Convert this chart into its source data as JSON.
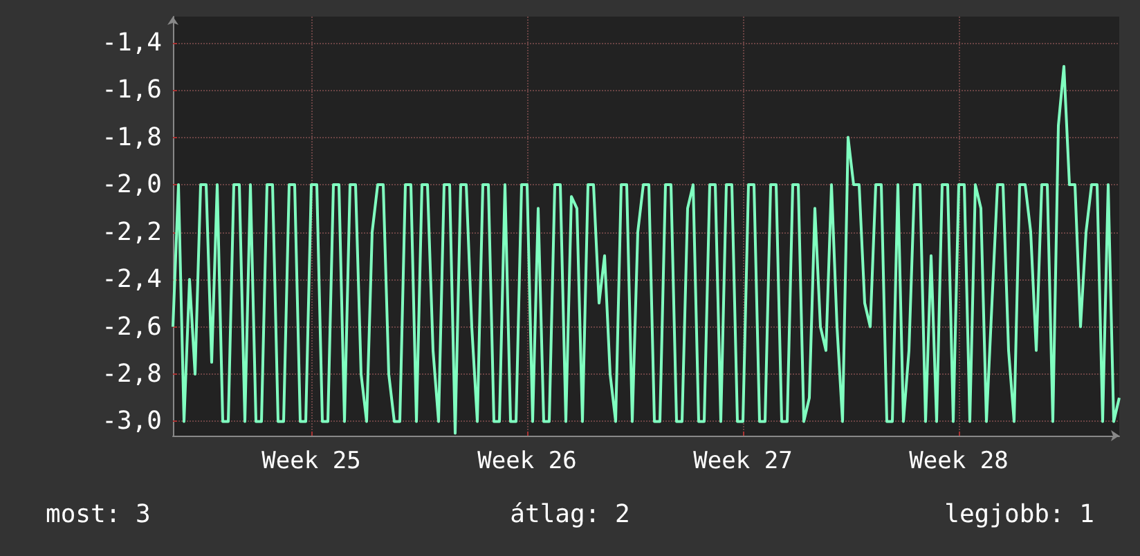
{
  "chart_data": {
    "type": "line",
    "marker": "none",
    "grid": "xy",
    "color": "#80ffc0",
    "ylim": [
      -3.06,
      -1.29
    ],
    "yticks": [
      {
        "value": -3.0,
        "label": "-3,0"
      },
      {
        "value": -2.8,
        "label": "-2,8"
      },
      {
        "value": -2.6,
        "label": "-2,6"
      },
      {
        "value": -2.4,
        "label": "-2,4"
      },
      {
        "value": -2.2,
        "label": "-2,2"
      },
      {
        "value": -2.0,
        "label": "-2,0"
      },
      {
        "value": -1.8,
        "label": "-1,8"
      },
      {
        "value": -1.6,
        "label": "-1,6"
      },
      {
        "value": -1.4,
        "label": "-1,4"
      }
    ],
    "annotations": [
      "most: 3",
      "átlag: 2",
      "legjobb: 1"
    ],
    "categories": [
      null,
      null,
      null,
      null,
      null,
      null,
      null,
      null,
      null,
      null,
      null,
      null,
      null,
      null,
      null,
      null,
      null,
      null,
      null,
      null,
      null,
      null,
      null,
      null,
      null,
      "Week 25",
      null,
      null,
      null,
      null,
      null,
      null,
      null,
      null,
      null,
      null,
      null,
      null,
      null,
      null,
      null,
      null,
      null,
      null,
      null,
      null,
      null,
      null,
      null,
      null,
      null,
      null,
      null,
      null,
      null,
      null,
      null,
      null,
      null,
      null,
      null,
      null,
      null,
      null,
      "Week 26",
      null,
      null,
      null,
      null,
      null,
      null,
      null,
      null,
      null,
      null,
      null,
      null,
      null,
      null,
      null,
      null,
      null,
      null,
      null,
      null,
      null,
      null,
      null,
      null,
      null,
      null,
      null,
      null,
      null,
      null,
      null,
      null,
      null,
      null,
      null,
      null,
      null,
      null,
      "Week 27",
      null,
      null,
      null,
      null,
      null,
      null,
      null,
      null,
      null,
      null,
      null,
      null,
      null,
      null,
      null,
      null,
      null,
      null,
      null,
      null,
      null,
      null,
      null,
      null,
      null,
      null,
      null,
      null,
      null,
      null,
      null,
      null,
      null,
      null,
      null,
      null,
      null,
      null,
      "Week 28",
      null,
      null,
      null,
      null,
      null,
      null,
      null,
      null,
      null,
      null,
      null,
      null,
      null,
      null,
      null,
      null,
      null,
      null,
      null,
      null,
      null,
      null,
      null,
      null,
      null,
      null,
      null,
      null,
      null
    ],
    "values": [
      -2.6,
      -2.0,
      -3.0,
      -2.4,
      -2.8,
      -2.0,
      -2.0,
      -2.75,
      -2.0,
      -3.0,
      -3.0,
      -2.0,
      -2.0,
      -3.0,
      -2.0,
      -3.0,
      -3.0,
      -2.0,
      -2.0,
      -3.0,
      -3.0,
      -2.0,
      -2.0,
      -3.0,
      -3.0,
      -2.0,
      -2.0,
      -3.0,
      -3.0,
      -2.0,
      -2.0,
      -3.0,
      -2.0,
      -2.0,
      -2.8,
      -3.0,
      -2.2,
      -2.0,
      -2.0,
      -2.8,
      -3.0,
      -3.0,
      -2.0,
      -2.0,
      -3.0,
      -2.0,
      -2.0,
      -2.7,
      -3.0,
      -2.0,
      -2.0,
      -3.05,
      -2.0,
      -2.0,
      -2.6,
      -3.0,
      -2.0,
      -2.0,
      -3.0,
      -3.0,
      -2.0,
      -3.0,
      -3.0,
      -2.0,
      -2.0,
      -3.0,
      -2.1,
      -3.0,
      -3.0,
      -2.0,
      -2.0,
      -3.0,
      -2.05,
      -2.1,
      -3.0,
      -2.0,
      -2.0,
      -2.5,
      -2.3,
      -2.8,
      -3.0,
      -2.0,
      -2.0,
      -3.0,
      -2.2,
      -2.0,
      -2.0,
      -3.0,
      -3.0,
      -2.0,
      -2.0,
      -3.0,
      -3.0,
      -2.1,
      -2.0,
      -3.0,
      -3.0,
      -2.0,
      -2.0,
      -3.0,
      -2.0,
      -2.0,
      -3.0,
      -3.0,
      -2.0,
      -2.0,
      -3.0,
      -3.0,
      -2.0,
      -2.0,
      -3.0,
      -3.0,
      -2.0,
      -2.0,
      -3.0,
      -2.9,
      -2.1,
      -2.6,
      -2.7,
      -2.0,
      -2.6,
      -3.0,
      -1.8,
      -2.0,
      -2.0,
      -2.5,
      -2.6,
      -2.0,
      -2.0,
      -3.0,
      -3.0,
      -2.0,
      -3.0,
      -2.7,
      -2.0,
      -2.0,
      -3.0,
      -2.3,
      -3.0,
      -2.0,
      -2.0,
      -3.0,
      -2.0,
      -2.0,
      -3.0,
      -2.0,
      -2.1,
      -3.0,
      -2.5,
      -2.0,
      -2.0,
      -2.7,
      -3.0,
      -2.0,
      -2.0,
      -2.2,
      -2.7,
      -2.0,
      -2.0,
      -3.0,
      -1.75,
      -1.5,
      -2.0,
      -2.0,
      -2.6,
      -2.2,
      -2.0,
      -2.0,
      -3.0,
      -2.0,
      -3.0,
      -2.9
    ]
  }
}
